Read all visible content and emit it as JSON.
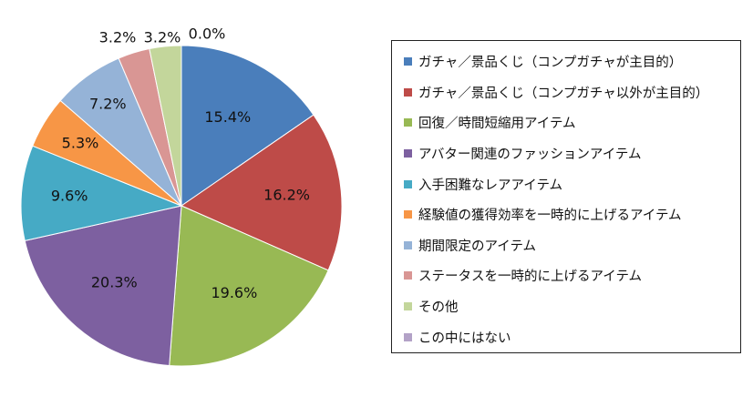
{
  "chart_data": {
    "type": "pie",
    "title": "",
    "legend_position": "right",
    "start_angle": "12 o'clock",
    "direction": "clockwise",
    "categories": [
      "ガチャ／景品くじ（コンプガチャが主目的）",
      "ガチャ／景品くじ（コンプガチャ以外が主目的）",
      "回復／時間短縮用アイテム",
      "アバター関連のファッションアイテム",
      "入手困難なレアアイテム",
      "経験値の獲得効率を一時的に上げるアイテム",
      "期間限定のアイテム",
      "ステータスを一時的に上げるアイテム",
      "その他",
      "この中にはない"
    ],
    "values": [
      15.4,
      16.2,
      19.6,
      20.3,
      9.6,
      5.3,
      7.2,
      3.2,
      3.2,
      0.0
    ],
    "data_labels": [
      "15.4%",
      "16.2%",
      "19.6%",
      "20.3%",
      "9.6%",
      "5.3%",
      "7.2%",
      "3.2%",
      "3.2%",
      "0.0%"
    ],
    "colors": [
      "#4a7ebb",
      "#be4b48",
      "#98b954",
      "#7d60a0",
      "#46aac5",
      "#f79646",
      "#95b3d7",
      "#d99694",
      "#c3d69b",
      "#b3a2c7"
    ]
  }
}
